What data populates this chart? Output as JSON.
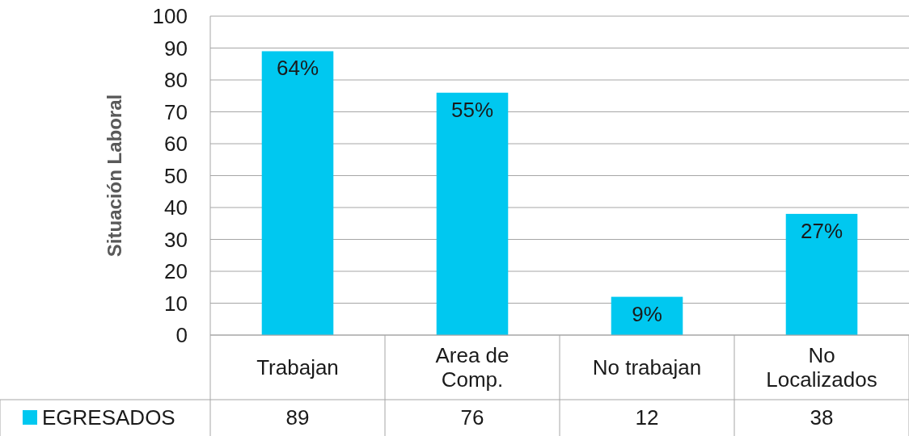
{
  "chart_data": {
    "type": "bar",
    "ylabel": "Situación Laboral",
    "categories": [
      "Trabajan",
      "Area de Comp.",
      "No trabajan",
      "No Localizados"
    ],
    "series": [
      {
        "name": "EGRESADOS",
        "color": "#00c8f0",
        "values": [
          89,
          76,
          12,
          38
        ],
        "value_labels": [
          "89",
          "76",
          "12",
          "38"
        ]
      }
    ],
    "annotations": [
      {
        "text": "64%",
        "x": "Trabajan",
        "y": 89
      },
      {
        "text": "55%",
        "x": "Area de Comp.",
        "y": 76
      },
      {
        "text": "9%",
        "x": "No trabajan",
        "y": 12
      },
      {
        "text": "27%",
        "x": "No Localizados",
        "y": 38
      }
    ],
    "ylim": [
      0,
      100
    ],
    "yticks": [
      0,
      10,
      20,
      30,
      40,
      50,
      60,
      70,
      80,
      90,
      100
    ],
    "grid": "y",
    "legend": "bottom left"
  }
}
